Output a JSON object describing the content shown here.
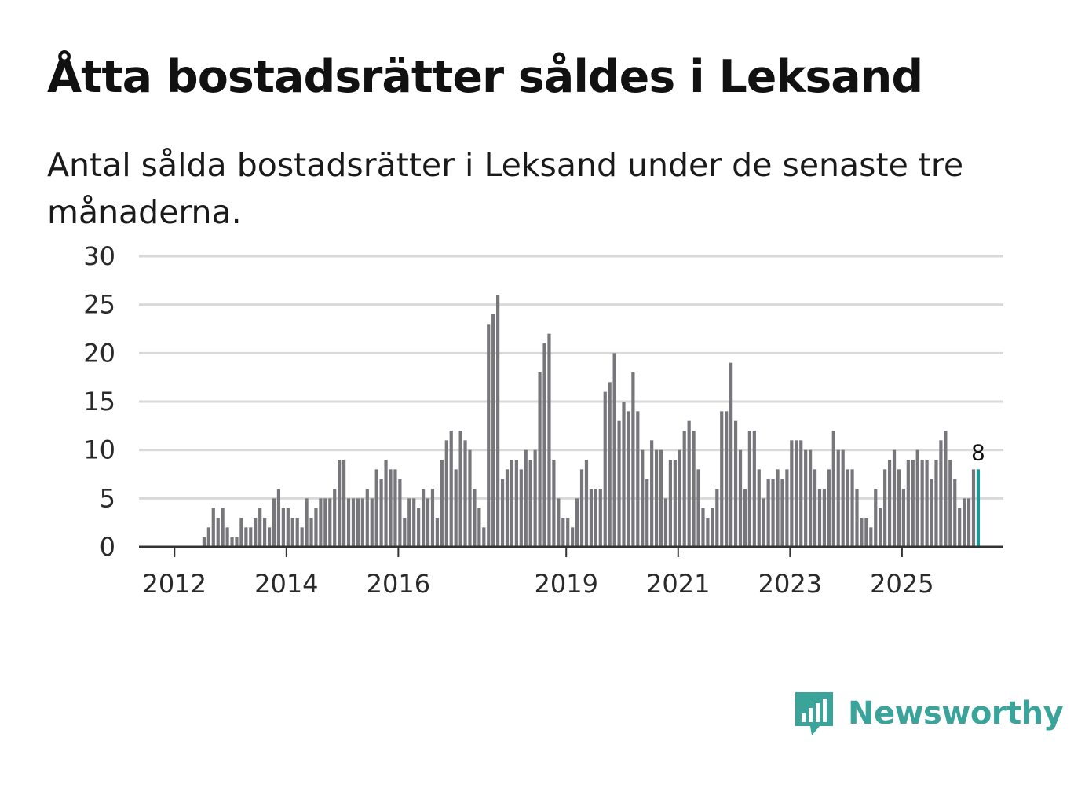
{
  "title": "Åtta bostadsrätter såldes i Leksand",
  "subtitle": "Antal sålda bostadsrätter i Leksand under de senaste tre månaderna.",
  "brand": {
    "name": "Newsworthy",
    "color": "#3aa39a",
    "icon": "bar-chart-speech-bubble-icon"
  },
  "colors": {
    "bar": "#77767b",
    "highlight": "#199a95",
    "grid": "#d9d9d9",
    "baseline": "#333333"
  },
  "chart_data": {
    "type": "bar",
    "title": "Antal sålda bostadsrätter i Leksand under de senaste tre månaderna.",
    "xlabel": "",
    "ylabel": "",
    "ylim": [
      0,
      30
    ],
    "yticks": [
      "0",
      "5",
      "10",
      "15",
      "20",
      "25",
      "30"
    ],
    "xticks": [
      {
        "label": "2012",
        "index": 4
      },
      {
        "label": "2014",
        "index": 28
      },
      {
        "label": "2016",
        "index": 52
      },
      {
        "label": "2019",
        "index": 88
      },
      {
        "label": "2021",
        "index": 112
      },
      {
        "label": "2023",
        "index": 136
      },
      {
        "label": "2025",
        "index": 160
      }
    ],
    "grid": true,
    "highlight_index": 176,
    "highlight_label": "8",
    "values": [
      0,
      0,
      0,
      0,
      0,
      0,
      0,
      0,
      0,
      0,
      1,
      2,
      4,
      3,
      4,
      2,
      1,
      1,
      3,
      2,
      2,
      3,
      4,
      3,
      2,
      5,
      6,
      4,
      4,
      3,
      3,
      2,
      5,
      3,
      4,
      5,
      5,
      5,
      6,
      9,
      9,
      5,
      5,
      5,
      5,
      6,
      5,
      8,
      7,
      9,
      8,
      8,
      7,
      3,
      5,
      5,
      4,
      6,
      5,
      6,
      3,
      9,
      11,
      12,
      8,
      12,
      11,
      10,
      6,
      4,
      2,
      23,
      24,
      26,
      7,
      8,
      9,
      9,
      8,
      10,
      9,
      10,
      18,
      21,
      22,
      9,
      5,
      3,
      3,
      2,
      5,
      8,
      9,
      6,
      6,
      6,
      16,
      17,
      20,
      13,
      15,
      14,
      18,
      14,
      10,
      7,
      11,
      10,
      10,
      5,
      9,
      9,
      10,
      12,
      13,
      12,
      8,
      4,
      3,
      4,
      6,
      14,
      14,
      19,
      13,
      10,
      6,
      12,
      12,
      8,
      5,
      7,
      7,
      8,
      7,
      8,
      11,
      11,
      11,
      10,
      10,
      8,
      6,
      6,
      8,
      12,
      10,
      10,
      8,
      8,
      6,
      3,
      3,
      2,
      6,
      4,
      8,
      9,
      10,
      8,
      6,
      9,
      9,
      10,
      9,
      9,
      7,
      9,
      11,
      12,
      9,
      7,
      4,
      5,
      5,
      8,
      8
    ]
  }
}
